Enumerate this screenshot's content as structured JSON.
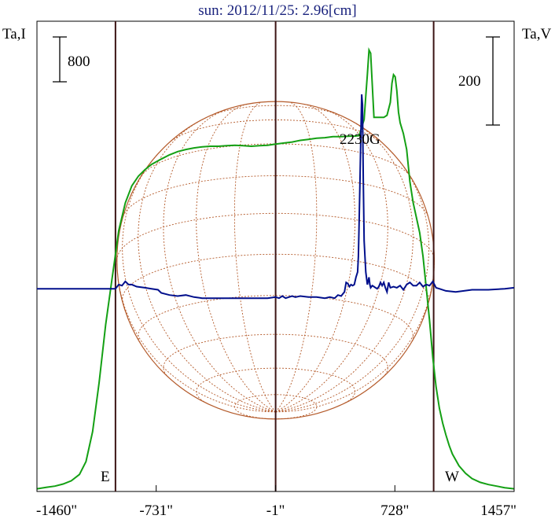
{
  "title": "sun: 2012/11/25: 2.96[cm]",
  "labels": {
    "left_axis": "Ta,I",
    "right_axis": "Ta,V",
    "scale_left": "800",
    "scale_right": "200",
    "east": "E",
    "west": "W",
    "annotation": "2230G"
  },
  "colors": {
    "intensity": "#14a014",
    "polarization": "#000f8c",
    "disk": "#b45a2a",
    "limb_lines": "#3c1414"
  },
  "chart_data": {
    "type": "line",
    "title": "sun: 2012/11/25: 2.96[cm]",
    "xlabel": "",
    "xlim": [
      -1460,
      1457
    ],
    "xticks": [
      {
        "value": -1460,
        "label": "-1460\""
      },
      {
        "value": -731,
        "label": "-731\""
      },
      {
        "value": -1,
        "label": "-1\""
      },
      {
        "value": 728,
        "label": "728\""
      },
      {
        "value": 1457,
        "label": "1457\""
      }
    ],
    "vertical_lines": [
      -980,
      -1,
      965
    ],
    "annotation": {
      "text": "2230G",
      "x": 528
    },
    "series": [
      {
        "axis": "left",
        "x": [
          -1460,
          -1400,
          -1350,
          -1300,
          -1250,
          -1200,
          -1160,
          -1120,
          -1080,
          -1040,
          -1000,
          -980,
          -960,
          -920,
          -880,
          -840,
          -800,
          -760,
          -700,
          -650,
          -600,
          -550,
          -500,
          -450,
          -400,
          -350,
          -300,
          -250,
          -200,
          -150,
          -100,
          -50,
          -1,
          50,
          100,
          150,
          200,
          250,
          300,
          350,
          400,
          450,
          480,
          510,
          540,
          550,
          560,
          570,
          580,
          590,
          600,
          620,
          640,
          660,
          680,
          700,
          710,
          720,
          730,
          740,
          750,
          760,
          780,
          800,
          820,
          840,
          860,
          880,
          900,
          920,
          940,
          960,
          980,
          1000,
          1020,
          1040,
          1060,
          1080,
          1120,
          1160,
          1200,
          1250,
          1300,
          1350,
          1400,
          1457
        ],
        "values": [
          25,
          40,
          50,
          70,
          100,
          160,
          280,
          560,
          1020,
          1560,
          2000,
          2220,
          2440,
          2700,
          2860,
          2950,
          3010,
          3060,
          3110,
          3150,
          3180,
          3200,
          3215,
          3225,
          3230,
          3230,
          3235,
          3240,
          3235,
          3230,
          3235,
          3240,
          3250,
          3260,
          3270,
          3285,
          3295,
          3305,
          3310,
          3320,
          3320,
          3325,
          3325,
          3330,
          3480,
          3700,
          3900,
          4130,
          4100,
          3800,
          3500,
          3500,
          3500,
          3500,
          3520,
          3640,
          3820,
          3900,
          3880,
          3750,
          3550,
          3450,
          3350,
          3200,
          2900,
          2700,
          2560,
          2420,
          2200,
          1900,
          1600,
          1250,
          980,
          780,
          640,
          530,
          430,
          350,
          240,
          170,
          120,
          85,
          65,
          50,
          35,
          25
        ],
        "range": [
          0,
          4400
        ]
      },
      {
        "axis": "right",
        "x": [
          -1460,
          -1400,
          -1300,
          -1200,
          -1100,
          -1040,
          -1000,
          -980,
          -960,
          -940,
          -920,
          -900,
          -880,
          -850,
          -800,
          -760,
          -720,
          -700,
          -650,
          -600,
          -550,
          -500,
          -450,
          -400,
          -350,
          -300,
          -250,
          -200,
          -150,
          -100,
          -50,
          -1,
          20,
          40,
          60,
          80,
          100,
          120,
          150,
          200,
          250,
          300,
          330,
          360,
          380,
          400,
          410,
          420,
          430,
          440,
          450,
          460,
          470,
          480,
          490,
          500,
          505,
          510,
          515,
          520,
          525,
          530,
          535,
          540,
          550,
          560,
          570,
          575,
          580,
          590,
          600,
          610,
          620,
          630,
          640,
          650,
          660,
          670,
          680,
          690,
          700,
          720,
          740,
          760,
          780,
          800,
          820,
          840,
          860,
          880,
          900,
          920,
          940,
          960,
          980,
          1000,
          1040,
          1100,
          1200,
          1300,
          1400,
          1457
        ],
        "values": [
          44,
          44,
          44,
          44,
          44,
          44,
          44,
          44,
          48,
          47,
          51,
          48,
          48,
          46,
          45,
          44,
          43,
          40,
          38,
          37,
          38,
          36,
          35,
          35,
          35,
          35,
          35,
          35,
          35,
          35,
          35,
          36,
          35,
          37,
          35,
          36,
          37,
          36,
          37,
          36,
          36,
          35,
          36,
          35,
          38,
          37,
          39,
          41,
          50,
          49,
          46,
          48,
          47,
          48,
          55,
          60,
          75,
          110,
          150,
          190,
          230,
          220,
          150,
          90,
          60,
          48,
          55,
          48,
          45,
          47,
          46,
          45,
          44,
          46,
          50,
          47,
          50,
          45,
          41,
          50,
          45,
          46,
          45,
          47,
          43,
          48,
          50,
          47,
          47,
          50,
          46,
          48,
          47,
          51,
          45,
          44,
          42,
          41,
          43,
          43,
          44,
          45
        ],
        "range": [
          -150,
          300
        ]
      }
    ],
    "disk": {
      "center_x": -1,
      "radius_arcsec": 970,
      "grid": "heliographic",
      "style": "dotted"
    }
  }
}
